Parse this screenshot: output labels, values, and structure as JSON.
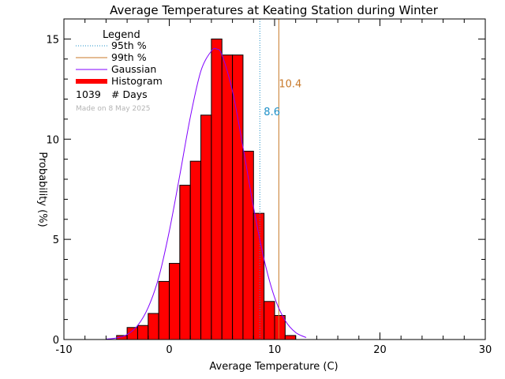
{
  "chart_data": {
    "type": "bar",
    "title": "Average Temperatures at Keating Station during Winter",
    "xlabel": "Average Temperature (C)",
    "ylabel": "Probability (%)",
    "xlim": [
      -10,
      30
    ],
    "ylim": [
      0,
      16
    ],
    "x_ticks": [
      -10,
      0,
      10,
      20,
      30
    ],
    "y_ticks": [
      0,
      5,
      10,
      15
    ],
    "bin_width": 1,
    "histogram": {
      "bin_start": [
        -5,
        -4,
        -3,
        -2,
        -1,
        0,
        1,
        2,
        3,
        4,
        5,
        6,
        7,
        8,
        9,
        10,
        11
      ],
      "values": [
        0.2,
        0.6,
        0.7,
        1.3,
        2.9,
        3.8,
        7.7,
        8.9,
        11.2,
        15.0,
        14.2,
        14.2,
        9.4,
        6.3,
        1.9,
        1.2,
        0.2
      ],
      "color": "#ff0000"
    },
    "gaussian": {
      "x": [
        -6,
        -5,
        -4,
        -3,
        -2,
        -1,
        0,
        1,
        2,
        3,
        4,
        4.5,
        5,
        6,
        7,
        8,
        9,
        10,
        11,
        12,
        13
      ],
      "y": [
        0.02,
        0.08,
        0.25,
        0.7,
        1.6,
        3.1,
        5.4,
        8.2,
        11.1,
        13.4,
        14.4,
        14.5,
        14.2,
        12.4,
        9.6,
        6.6,
        4.0,
        2.1,
        0.95,
        0.35,
        0.1
      ],
      "color": "#8000ff"
    },
    "percentile_95": {
      "value": 8.6,
      "label": "8.6",
      "color": "#1e90c8"
    },
    "percentile_99": {
      "value": 10.4,
      "label": "10.4",
      "color": "#c87828"
    },
    "legend": {
      "title": "Legend",
      "items": [
        {
          "label": "95th %",
          "style": "dotted",
          "color": "#1e90c8"
        },
        {
          "label": "99th %",
          "style": "solid",
          "color": "#c87828"
        },
        {
          "label": "Gaussian",
          "style": "solid",
          "color": "#8000ff"
        },
        {
          "label": "Histogram",
          "style": "thick",
          "color": "#ff0000"
        }
      ],
      "count_value": "1039",
      "count_label": "# Days",
      "made_on": "Made on 8 May 2025",
      "placement": "top-left"
    }
  }
}
